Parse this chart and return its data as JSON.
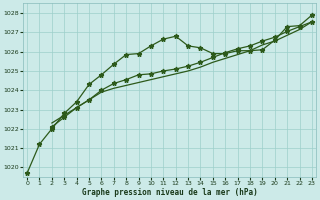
{
  "xlabel": "Graphe pression niveau de la mer (hPa)",
  "xlim": [
    -0.3,
    23.3
  ],
  "ylim": [
    1019.5,
    1028.5
  ],
  "yticks": [
    1020,
    1021,
    1022,
    1023,
    1024,
    1025,
    1026,
    1027,
    1028
  ],
  "xticks": [
    0,
    1,
    2,
    3,
    4,
    5,
    6,
    7,
    8,
    9,
    10,
    11,
    12,
    13,
    14,
    15,
    16,
    17,
    18,
    19,
    20,
    21,
    22,
    23
  ],
  "background_color": "#cceae8",
  "grid_color": "#9dcfcb",
  "line_color": "#2d5a1b",
  "line1_x": [
    0,
    1,
    2,
    3,
    4,
    5,
    6,
    7,
    8,
    9,
    10,
    11,
    12,
    13,
    14,
    15,
    16,
    17,
    18,
    19,
    20,
    21,
    22,
    23
  ],
  "line1_y": [
    1019.7,
    1021.2,
    1022.0,
    1022.8,
    1023.4,
    1024.3,
    1024.8,
    1025.35,
    1025.85,
    1025.9,
    1026.3,
    1026.65,
    1026.8,
    1026.3,
    1026.2,
    1025.9,
    1025.9,
    1026.05,
    1026.05,
    1026.1,
    1026.6,
    1027.3,
    1027.35,
    1027.9
  ],
  "line2_x": [
    2,
    3,
    4,
    5,
    6,
    7,
    8,
    9,
    10,
    11,
    12,
    13,
    14,
    15,
    16,
    17,
    18,
    19,
    20,
    21,
    22,
    23
  ],
  "line2_y": [
    1022.1,
    1022.6,
    1023.1,
    1023.5,
    1024.0,
    1024.35,
    1024.55,
    1024.8,
    1024.85,
    1025.0,
    1025.1,
    1025.25,
    1025.45,
    1025.7,
    1025.95,
    1026.15,
    1026.3,
    1026.55,
    1026.75,
    1027.05,
    1027.3,
    1027.55
  ],
  "line3_x": [
    2,
    3,
    4,
    5,
    6,
    7,
    8,
    9,
    10,
    11,
    12,
    13,
    14,
    15,
    16,
    17,
    18,
    19,
    20,
    21,
    22,
    23
  ],
  "line3_y": [
    1022.3,
    1022.7,
    1023.1,
    1023.5,
    1023.9,
    1024.1,
    1024.25,
    1024.4,
    1024.55,
    1024.7,
    1024.85,
    1025.0,
    1025.2,
    1025.45,
    1025.65,
    1025.85,
    1026.05,
    1026.35,
    1026.55,
    1026.85,
    1027.15,
    1027.55
  ]
}
